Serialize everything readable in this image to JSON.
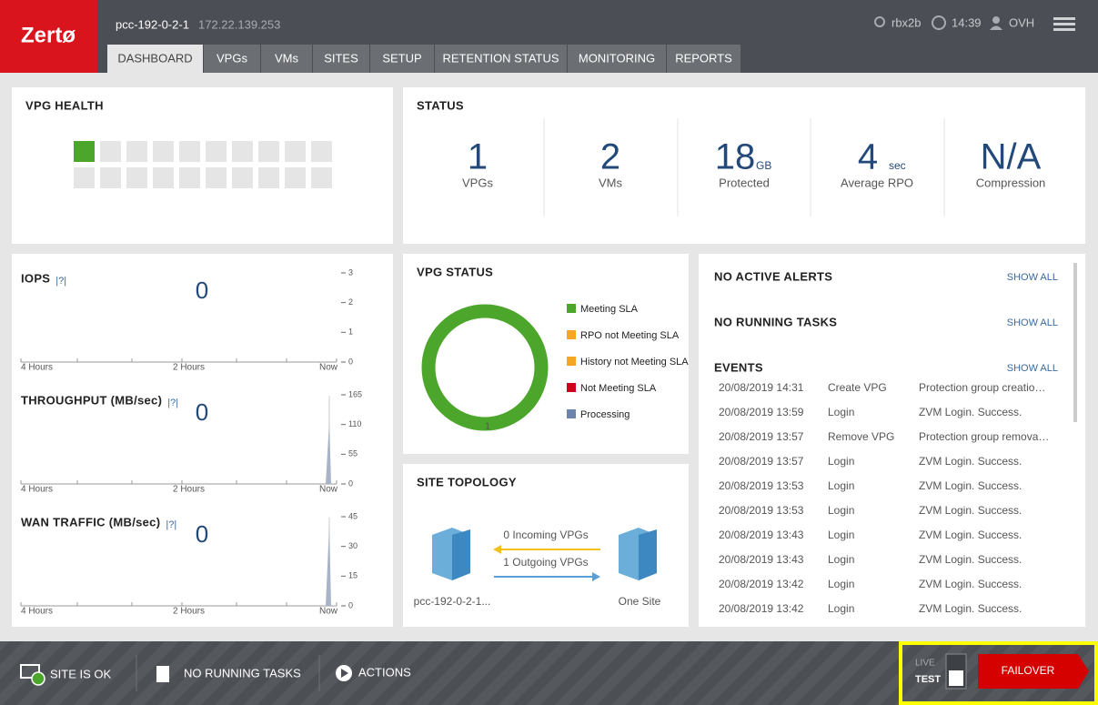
{
  "header": {
    "logo": "Zertø",
    "host": "pcc-192-0-2-1",
    "ip": "172.22.139.253",
    "site": "rbx2b",
    "time": "14:39",
    "user": "OVH"
  },
  "tabs": [
    "DASHBOARD",
    "VPGs",
    "VMs",
    "SITES",
    "SETUP",
    "RETENTION STATUS",
    "MONITORING",
    "REPORTS"
  ],
  "vpg_health": {
    "title": "VPG HEALTH"
  },
  "status": {
    "title": "STATUS",
    "items": [
      {
        "value": 1,
        "label": "VPGs"
      },
      {
        "value": 2,
        "label": "VMs"
      },
      {
        "value": 18,
        "unit": "GB",
        "label": "Protected"
      },
      {
        "value": 4,
        "unit": "sec",
        "label": "Average RPO"
      },
      {
        "value": "N/A",
        "label": "Compression"
      }
    ]
  },
  "metrics": [
    {
      "title": "IOPS",
      "help": "|?|",
      "value": 0,
      "ticks": [
        3,
        2,
        1,
        0
      ],
      "x_labels": [
        "4 Hours",
        "2 Hours",
        "Now"
      ]
    },
    {
      "title": "THROUGHPUT (MB/sec)",
      "help": "|?|",
      "value": 0,
      "ticks": [
        165,
        110,
        55,
        0
      ],
      "x_labels": [
        "4 Hours",
        "2 Hours",
        "Now"
      ]
    },
    {
      "title": "WAN TRAFFIC (MB/sec)",
      "help": "|?|",
      "value": 0,
      "ticks": [
        45,
        30,
        15,
        0
      ],
      "x_labels": [
        "4 Hours",
        "2 Hours",
        "Now"
      ]
    }
  ],
  "vpg_status": {
    "title": "VPG STATUS",
    "count": 1,
    "legend": [
      "Meeting SLA",
      "RPO not Meeting SLA",
      "History not Meeting SLA",
      "Not Meeting SLA",
      "Processing"
    ]
  },
  "site_topology": {
    "title": "SITE TOPOLOGY",
    "local": "pcc-192-0-2-1...",
    "remote": "One Site",
    "incoming": "0 Incoming VPGs",
    "outgoing": "1 Outgoing VPGs"
  },
  "alerts": {
    "no_alerts": "NO ACTIVE ALERTS",
    "no_tasks": "NO RUNNING TASKS",
    "events_title": "EVENTS",
    "show_all": "SHOW ALL",
    "events": [
      [
        "20/08/2019 14:31",
        "Create VPG",
        "Protection group creatio…"
      ],
      [
        "20/08/2019 13:59",
        "Login",
        "ZVM Login. Success."
      ],
      [
        "20/08/2019 13:57",
        "Remove VPG",
        "Protection group remova…"
      ],
      [
        "20/08/2019 13:57",
        "Login",
        "ZVM Login. Success."
      ],
      [
        "20/08/2019 13:53",
        "Login",
        "ZVM Login. Success."
      ],
      [
        "20/08/2019 13:53",
        "Login",
        "ZVM Login. Success."
      ],
      [
        "20/08/2019 13:43",
        "Login",
        "ZVM Login. Success."
      ],
      [
        "20/08/2019 13:43",
        "Login",
        "ZVM Login. Success."
      ],
      [
        "20/08/2019 13:42",
        "Login",
        "ZVM Login. Success."
      ],
      [
        "20/08/2019 13:42",
        "Login",
        "ZVM Login. Success."
      ]
    ]
  },
  "footer": {
    "site_ok": "SITE IS OK",
    "tasks": "NO RUNNING TASKS",
    "actions": "ACTIONS",
    "live": "LIVE",
    "test": "TEST",
    "failover": "FAILOVER"
  }
}
